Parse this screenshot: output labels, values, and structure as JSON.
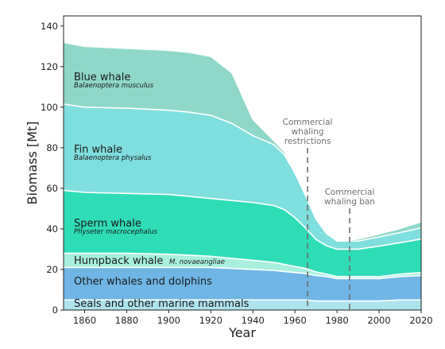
{
  "chart_data": {
    "type": "area",
    "stacked": true,
    "xlabel": "Year",
    "ylabel": "Biomass [Mt]",
    "xlim": [
      1850,
      2020
    ],
    "ylim": [
      0,
      145
    ],
    "xticks": [
      1860,
      1880,
      1900,
      1920,
      1940,
      1960,
      1980,
      2000,
      2020
    ],
    "yticks": [
      0,
      20,
      40,
      60,
      80,
      100,
      120,
      140
    ],
    "x": [
      1850,
      1860,
      1880,
      1900,
      1910,
      1920,
      1930,
      1940,
      1950,
      1955,
      1960,
      1965,
      1970,
      1975,
      1980,
      1985,
      1990,
      2000,
      2010,
      2020
    ],
    "series": [
      {
        "name": "Seals and other marine mammals",
        "scientific_name": "",
        "color": "#aee3ee",
        "values": [
          5,
          5,
          5,
          5,
          5,
          5,
          5,
          5,
          5,
          5,
          5,
          5,
          4.5,
          4.5,
          4.5,
          4.5,
          4.5,
          4.5,
          5,
          5
        ]
      },
      {
        "name": "Other whales and dolphins",
        "scientific_name": "",
        "color": "#6fb6e6",
        "values": [
          16,
          16,
          16,
          16,
          16,
          16,
          15.5,
          15,
          14.5,
          14,
          13.5,
          13,
          12.5,
          12,
          11,
          11,
          11,
          11,
          11.5,
          12
        ]
      },
      {
        "name": "Humpback whale",
        "scientific_name": "M. novaeangliae",
        "color": "#a8efde",
        "values": [
          7,
          7,
          7,
          6.5,
          6,
          5.5,
          5,
          4.5,
          4,
          3.5,
          3,
          2.5,
          1.8,
          1.2,
          1,
          1,
          1,
          1,
          1.2,
          1.5
        ]
      },
      {
        "name": "Sperm whale",
        "scientific_name": "Physeter macrocephalus",
        "color": "#2fdcb8",
        "values": [
          31,
          30,
          29.5,
          29.5,
          29,
          28.5,
          28.5,
          28.5,
          28,
          27,
          24,
          20,
          16,
          14,
          13.5,
          13.5,
          13.5,
          15,
          15.5,
          16.5
        ]
      },
      {
        "name": "Fin whale",
        "scientific_name": "Balaenoptera physalus",
        "color": "#7fdede",
        "values": [
          42.5,
          42,
          42,
          41.5,
          41.5,
          41,
          38,
          33,
          30,
          27,
          22,
          16,
          10,
          6,
          4,
          4,
          4,
          4.5,
          5,
          5.5
        ]
      },
      {
        "name": "Blue whale",
        "scientific_name": "Balaenoptera musculus",
        "color": "#8fd8c9",
        "values": [
          30.5,
          30,
          29.5,
          29.5,
          29.5,
          29,
          25,
          8,
          2,
          1.5,
          1,
          1,
          0.5,
          0.5,
          0.5,
          0.5,
          1,
          1.5,
          2,
          3
        ]
      }
    ],
    "annotations": [
      {
        "year": 1966,
        "label_lines": [
          "Commercial",
          "whaling",
          "restrictions"
        ]
      },
      {
        "year": 1986,
        "label_lines": [
          "Commercial",
          "whaling ban"
        ]
      }
    ]
  }
}
